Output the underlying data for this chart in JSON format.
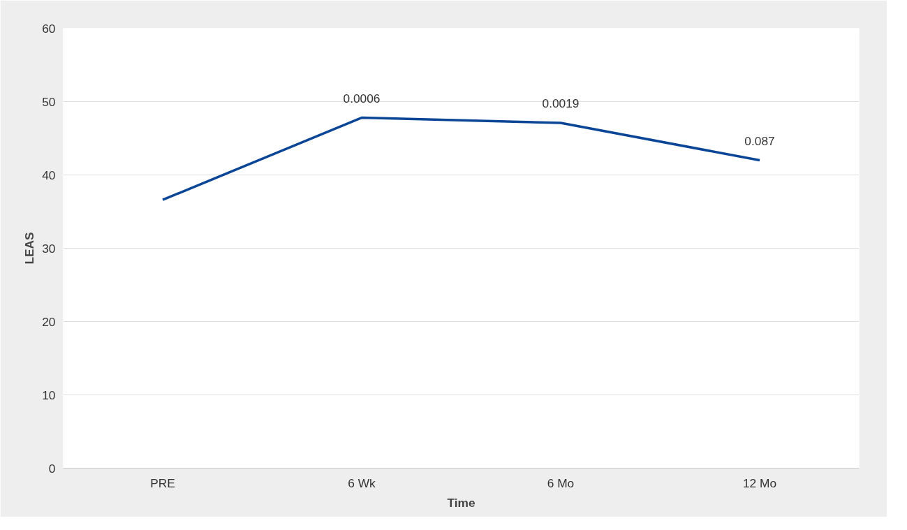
{
  "chart_data": {
    "type": "line",
    "xlabel": "Time",
    "ylabel": "LEAS",
    "categories": [
      "PRE",
      "6 Wk",
      "6 Mo",
      "12 Mo"
    ],
    "series": [
      {
        "color": "#0b4595",
        "values": [
          36.6,
          47.8,
          47.1,
          42.0
        ]
      }
    ],
    "ylim": [
      0,
      60
    ],
    "yticks": [
      0,
      10,
      20,
      30,
      40,
      50,
      60
    ],
    "grid": "y",
    "marker": "none",
    "line_style": "solid",
    "annotations": [
      {
        "text": "0.0006",
        "x": "6 Wk",
        "y": 47.8
      },
      {
        "text": "0.0019",
        "x": "6 Mo",
        "y": 47.1
      },
      {
        "text": "0.087",
        "x": "12 Mo",
        "y": 42.0
      }
    ]
  }
}
